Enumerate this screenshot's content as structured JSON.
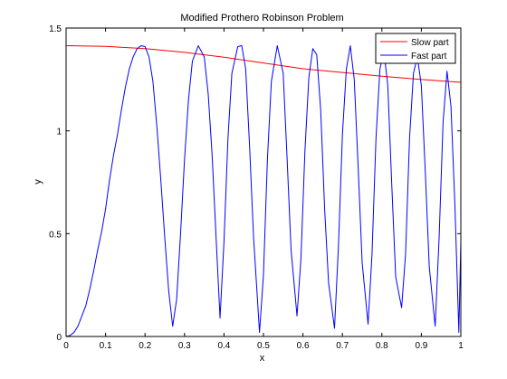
{
  "chart_data": {
    "type": "line",
    "title": "Modified Prothero Robinson Problem",
    "xlabel": "x",
    "ylabel": "y",
    "xlim": [
      0,
      1
    ],
    "ylim": [
      0,
      1.5
    ],
    "xticks": [
      0,
      0.1,
      0.2,
      0.3,
      0.4,
      0.5,
      0.6,
      0.7,
      0.8,
      0.9,
      1
    ],
    "yticks": [
      0,
      0.5,
      1,
      1.5
    ],
    "xtick_labels": [
      "0",
      "0.1",
      "0.2",
      "0.3",
      "0.4",
      "0.5",
      "0.6",
      "0.7",
      "0.8",
      "0.9",
      "1"
    ],
    "ytick_labels": [
      "0",
      "0.5",
      "1",
      "1.5"
    ],
    "grid": false,
    "legend_position": "top-right",
    "series": [
      {
        "name": "Slow part",
        "color": "#ff0000",
        "points": [
          [
            0,
            1.414
          ],
          [
            0.1,
            1.411
          ],
          [
            0.2,
            1.4
          ],
          [
            0.3,
            1.382
          ],
          [
            0.4,
            1.358
          ],
          [
            0.5,
            1.33
          ],
          [
            0.6,
            1.302
          ],
          [
            0.7,
            1.284
          ],
          [
            0.8,
            1.266
          ],
          [
            0.9,
            1.25
          ],
          [
            1,
            1.236
          ]
        ]
      },
      {
        "name": "Fast part",
        "color": "#0000ff",
        "points": [
          [
            0,
            0
          ],
          [
            0.01,
            0.005
          ],
          [
            0.02,
            0.02
          ],
          [
            0.03,
            0.05
          ],
          [
            0.04,
            0.1
          ],
          [
            0.05,
            0.15
          ],
          [
            0.06,
            0.23
          ],
          [
            0.07,
            0.32
          ],
          [
            0.08,
            0.42
          ],
          [
            0.09,
            0.51
          ],
          [
            0.1,
            0.62
          ],
          [
            0.11,
            0.76
          ],
          [
            0.12,
            0.88
          ],
          [
            0.13,
            0.98
          ],
          [
            0.14,
            1.1
          ],
          [
            0.15,
            1.21
          ],
          [
            0.16,
            1.3
          ],
          [
            0.17,
            1.36
          ],
          [
            0.18,
            1.4
          ],
          [
            0.19,
            1.414
          ],
          [
            0.2,
            1.41
          ],
          [
            0.21,
            1.36
          ],
          [
            0.22,
            1.24
          ],
          [
            0.23,
            1.02
          ],
          [
            0.24,
            0.76
          ],
          [
            0.25,
            0.48
          ],
          [
            0.26,
            0.22
          ],
          [
            0.27,
            0.05
          ],
          [
            0.28,
            0.18
          ],
          [
            0.29,
            0.5
          ],
          [
            0.3,
            0.86
          ],
          [
            0.31,
            1.15
          ],
          [
            0.32,
            1.34
          ],
          [
            0.335,
            1.414
          ],
          [
            0.35,
            1.36
          ],
          [
            0.36,
            1.18
          ],
          [
            0.37,
            0.88
          ],
          [
            0.38,
            0.48
          ],
          [
            0.39,
            0.09
          ],
          [
            0.4,
            0.46
          ],
          [
            0.41,
            0.96
          ],
          [
            0.42,
            1.28
          ],
          [
            0.435,
            1.41
          ],
          [
            0.445,
            1.414
          ],
          [
            0.455,
            1.3
          ],
          [
            0.465,
            0.92
          ],
          [
            0.475,
            0.48
          ],
          [
            0.49,
            0.02
          ],
          [
            0.5,
            0.3
          ],
          [
            0.51,
            0.86
          ],
          [
            0.52,
            1.24
          ],
          [
            0.535,
            1.414
          ],
          [
            0.55,
            1.28
          ],
          [
            0.56,
            0.86
          ],
          [
            0.57,
            0.42
          ],
          [
            0.585,
            0.1
          ],
          [
            0.595,
            0.38
          ],
          [
            0.605,
            0.9
          ],
          [
            0.615,
            1.26
          ],
          [
            0.625,
            1.4
          ],
          [
            0.635,
            1.37
          ],
          [
            0.645,
            1.1
          ],
          [
            0.655,
            0.62
          ],
          [
            0.665,
            0.26
          ],
          [
            0.68,
            0.04
          ],
          [
            0.69,
            0.44
          ],
          [
            0.7,
            0.98
          ],
          [
            0.71,
            1.3
          ],
          [
            0.72,
            1.414
          ],
          [
            0.73,
            1.25
          ],
          [
            0.74,
            0.82
          ],
          [
            0.75,
            0.36
          ],
          [
            0.765,
            0.06
          ],
          [
            0.775,
            0.4
          ],
          [
            0.785,
            0.96
          ],
          [
            0.795,
            1.3
          ],
          [
            0.805,
            1.39
          ],
          [
            0.815,
            1.22
          ],
          [
            0.825,
            0.74
          ],
          [
            0.835,
            0.29
          ],
          [
            0.85,
            0.14
          ],
          [
            0.86,
            0.4
          ],
          [
            0.87,
            0.96
          ],
          [
            0.88,
            1.28
          ],
          [
            0.89,
            1.36
          ],
          [
            0.9,
            1.22
          ],
          [
            0.91,
            0.8
          ],
          [
            0.92,
            0.34
          ],
          [
            0.935,
            0.05
          ],
          [
            0.945,
            0.48
          ],
          [
            0.955,
            1.04
          ],
          [
            0.965,
            1.29
          ],
          [
            0.975,
            1.12
          ],
          [
            0.985,
            0.64
          ],
          [
            0.995,
            0.02
          ],
          [
            1,
            0.46
          ]
        ]
      }
    ]
  }
}
